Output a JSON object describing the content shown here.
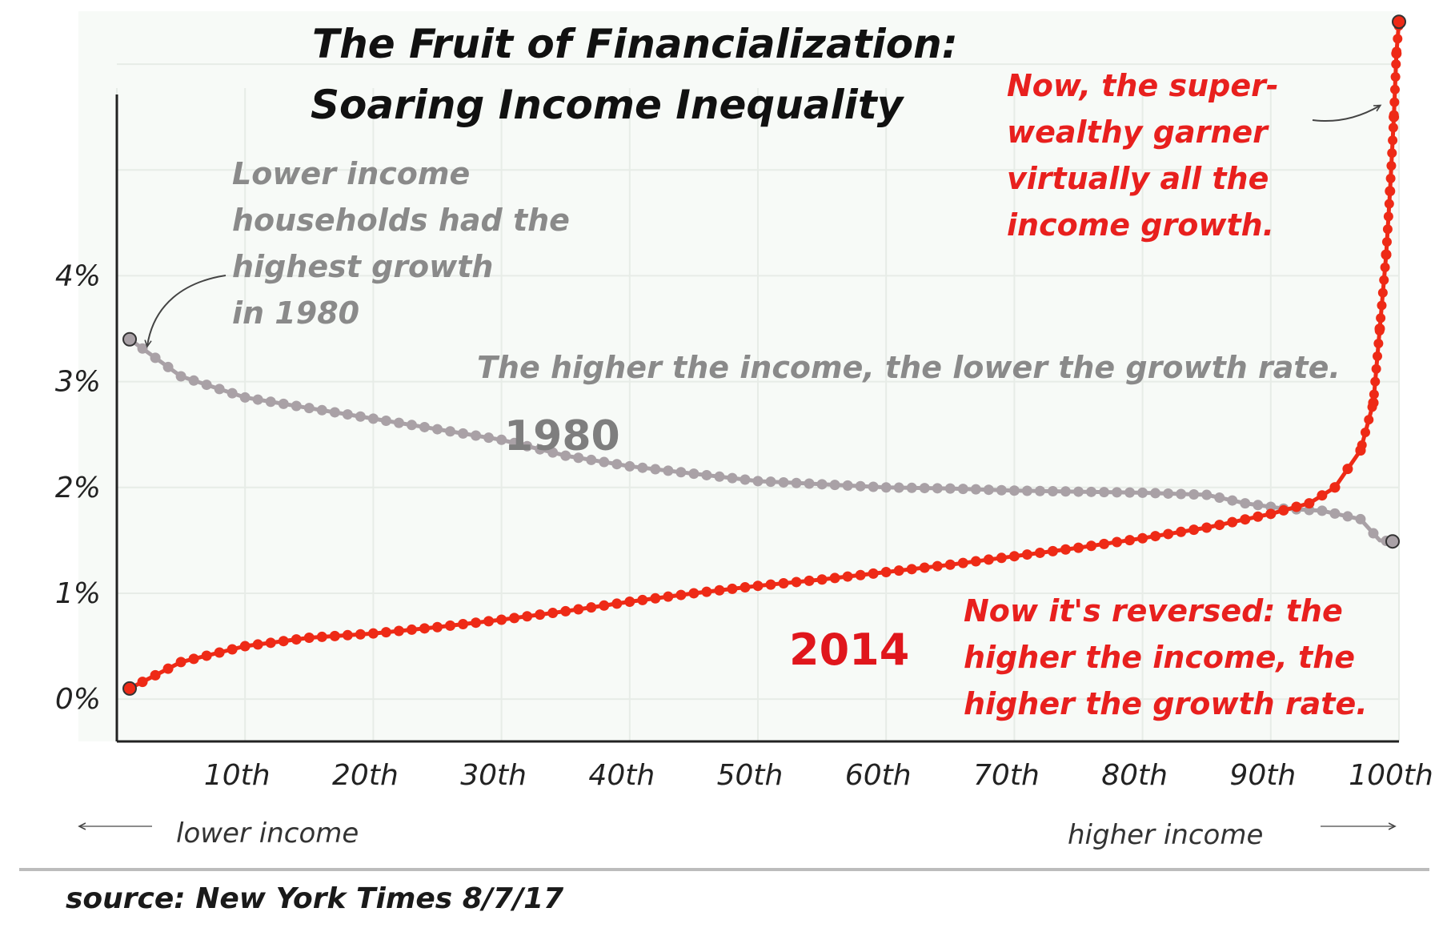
{
  "chart_data": {
    "type": "line",
    "title_line1": "The Fruit of Financialization:",
    "title_line2": "Soaring Income Inequality",
    "xlabel": "",
    "ylabel": "",
    "x_ticks": [
      "10th",
      "20th",
      "30th",
      "40th",
      "50th",
      "60th",
      "70th",
      "80th",
      "90th",
      "100th"
    ],
    "y_ticks": [
      "0%",
      "1%",
      "2%",
      "3%",
      "4%"
    ],
    "xlim": [
      0,
      100
    ],
    "ylim": [
      -0.4,
      6.5
    ],
    "grid": true,
    "lower_income_label": "lower income",
    "higher_income_label": "higher income",
    "annotations": {
      "lower_income_note": [
        "Lower income",
        "households had the",
        "highest growth",
        "in 1980"
      ],
      "trend_1980_note": "The higher the income, the lower the growth rate.",
      "super_wealthy_note": [
        "Now, the super-",
        "wealthy garner",
        "virtually all the",
        "income growth."
      ],
      "reversed_note": [
        "Now it's reversed: the",
        "higher the income, the",
        "higher the growth rate."
      ]
    },
    "series": [
      {
        "name": "1980",
        "color": "#a9a1a6",
        "points": [
          [
            1,
            3.4
          ],
          [
            5,
            3.05
          ],
          [
            10,
            2.85
          ],
          [
            15,
            2.75
          ],
          [
            20,
            2.65
          ],
          [
            25,
            2.55
          ],
          [
            30,
            2.45
          ],
          [
            35,
            2.3
          ],
          [
            40,
            2.2
          ],
          [
            45,
            2.13
          ],
          [
            50,
            2.06
          ],
          [
            55,
            2.03
          ],
          [
            60,
            2.0
          ],
          [
            65,
            1.99
          ],
          [
            70,
            1.97
          ],
          [
            75,
            1.96
          ],
          [
            80,
            1.95
          ],
          [
            85,
            1.93
          ],
          [
            88,
            1.85
          ],
          [
            91,
            1.8
          ],
          [
            94,
            1.78
          ],
          [
            97,
            1.7
          ],
          [
            98.5,
            1.5
          ],
          [
            99.5,
            1.49
          ]
        ]
      },
      {
        "name": "2014",
        "color": "#ee2a16",
        "points": [
          [
            1,
            0.1
          ],
          [
            5,
            0.35
          ],
          [
            10,
            0.5
          ],
          [
            15,
            0.58
          ],
          [
            20,
            0.62
          ],
          [
            25,
            0.68
          ],
          [
            30,
            0.75
          ],
          [
            35,
            0.83
          ],
          [
            40,
            0.92
          ],
          [
            45,
            1.0
          ],
          [
            50,
            1.07
          ],
          [
            55,
            1.13
          ],
          [
            60,
            1.2
          ],
          [
            65,
            1.27
          ],
          [
            70,
            1.35
          ],
          [
            75,
            1.43
          ],
          [
            80,
            1.52
          ],
          [
            85,
            1.62
          ],
          [
            90,
            1.75
          ],
          [
            93,
            1.85
          ],
          [
            95,
            2.0
          ],
          [
            97,
            2.35
          ],
          [
            98,
            2.8
          ],
          [
            98.5,
            3.5
          ],
          [
            99,
            4.2
          ],
          [
            99.3,
            4.8
          ],
          [
            99.6,
            5.5
          ],
          [
            99.8,
            6.1
          ],
          [
            100,
            6.4
          ]
        ]
      }
    ],
    "series_label_1980": "1980",
    "series_label_2014": "2014",
    "source": "source: New York Times  8/7/17"
  }
}
